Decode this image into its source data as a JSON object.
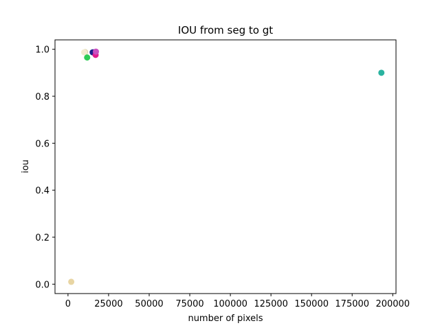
{
  "chart_data": {
    "type": "scatter",
    "title": "IOU from seg to gt",
    "xlabel": "number of pixels",
    "ylabel": "iou",
    "xlim": [
      -8000,
      202000
    ],
    "ylim": [
      -0.04,
      1.04
    ],
    "xticks": [
      0,
      25000,
      50000,
      75000,
      100000,
      125000,
      150000,
      175000,
      200000
    ],
    "xtick_labels": [
      "0",
      "25000",
      "50000",
      "75000",
      "100000",
      "125000",
      "150000",
      "175000",
      "200000"
    ],
    "yticks": [
      0.0,
      0.2,
      0.4,
      0.6,
      0.8,
      1.0
    ],
    "ytick_labels": [
      "0.0",
      "0.2",
      "0.4",
      "0.6",
      "0.8",
      "1.0"
    ],
    "grid": false,
    "points": [
      {
        "x": 2000,
        "y": 0.01,
        "color": "#e8d5a3"
      },
      {
        "x": 10500,
        "y": 0.988,
        "color": "#d9d4a8"
      },
      {
        "x": 10000,
        "y": 0.987,
        "color": "#f3ead0"
      },
      {
        "x": 11800,
        "y": 0.965,
        "color": "#2ecc55"
      },
      {
        "x": 16000,
        "y": 0.987,
        "color": "#5a1cc7"
      },
      {
        "x": 15200,
        "y": 0.987,
        "color": "#1a1f8c"
      },
      {
        "x": 17000,
        "y": 0.976,
        "color": "#e01b8c"
      },
      {
        "x": 17200,
        "y": 0.99,
        "color": "#c94fbf"
      },
      {
        "x": 193000,
        "y": 0.9,
        "color": "#2ab3a0"
      }
    ]
  }
}
